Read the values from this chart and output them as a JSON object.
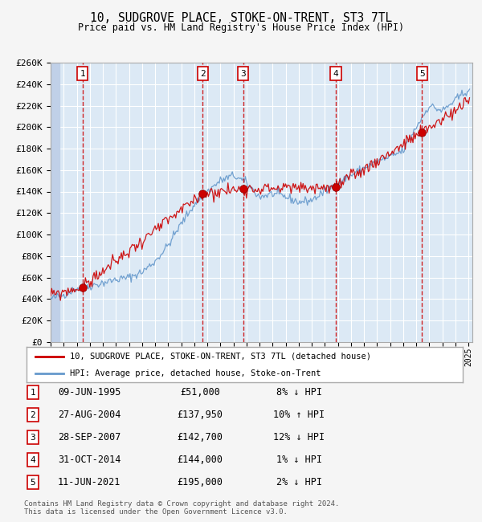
{
  "title": "10, SUDGROVE PLACE, STOKE-ON-TRENT, ST3 7TL",
  "subtitle": "Price paid vs. HM Land Registry's House Price Index (HPI)",
  "ylim": [
    0,
    260000
  ],
  "yticks": [
    0,
    20000,
    40000,
    60000,
    80000,
    100000,
    120000,
    140000,
    160000,
    180000,
    200000,
    220000,
    240000,
    260000
  ],
  "x_start_year": 1993,
  "x_end_year": 2025,
  "bg_color": "#dce9f5",
  "hatch_color": "#c0d0e8",
  "grid_color": "#ffffff",
  "red_line_color": "#cc0000",
  "blue_line_color": "#6699cc",
  "marker_color": "#cc0000",
  "vline_color": "#cc0000",
  "sale_dates_x": [
    1995.44,
    2004.65,
    2007.74,
    2014.83,
    2021.44
  ],
  "sale_prices_y": [
    51000,
    137950,
    142700,
    144000,
    195000
  ],
  "vline_numbers": [
    1,
    2,
    3,
    4,
    5
  ],
  "legend_label_red": "10, SUDGROVE PLACE, STOKE-ON-TRENT, ST3 7TL (detached house)",
  "legend_label_blue": "HPI: Average price, detached house, Stoke-on-Trent",
  "table_rows": [
    {
      "num": 1,
      "date": "09-JUN-1995",
      "price": "£51,000",
      "hpi": "8% ↓ HPI"
    },
    {
      "num": 2,
      "date": "27-AUG-2004",
      "price": "£137,950",
      "hpi": "10% ↑ HPI"
    },
    {
      "num": 3,
      "date": "28-SEP-2007",
      "price": "£142,700",
      "hpi": "12% ↓ HPI"
    },
    {
      "num": 4,
      "date": "31-OCT-2014",
      "price": "£144,000",
      "hpi": "1% ↓ HPI"
    },
    {
      "num": 5,
      "date": "11-JUN-2021",
      "price": "£195,000",
      "hpi": "2% ↓ HPI"
    }
  ],
  "footer": "Contains HM Land Registry data © Crown copyright and database right 2024.\nThis data is licensed under the Open Government Licence v3.0.",
  "hpi_anchors_x": [
    1993,
    1994,
    1995,
    1996,
    1997,
    1998,
    1999,
    2000,
    2001,
    2002,
    2003,
    2004,
    2005,
    2006,
    2007,
    2008,
    2009,
    2010,
    2011,
    2012,
    2013,
    2014,
    2015,
    2016,
    2017,
    2018,
    2019,
    2020,
    2021,
    2022,
    2023,
    2024,
    2025
  ],
  "hpi_anchors_y": [
    40000,
    44000,
    50000,
    52000,
    55000,
    58000,
    60000,
    65000,
    75000,
    90000,
    110000,
    128000,
    140000,
    150000,
    155000,
    148000,
    135000,
    138000,
    135000,
    130000,
    132000,
    140000,
    148000,
    155000,
    162000,
    168000,
    172000,
    178000,
    200000,
    220000,
    215000,
    225000,
    235000
  ]
}
